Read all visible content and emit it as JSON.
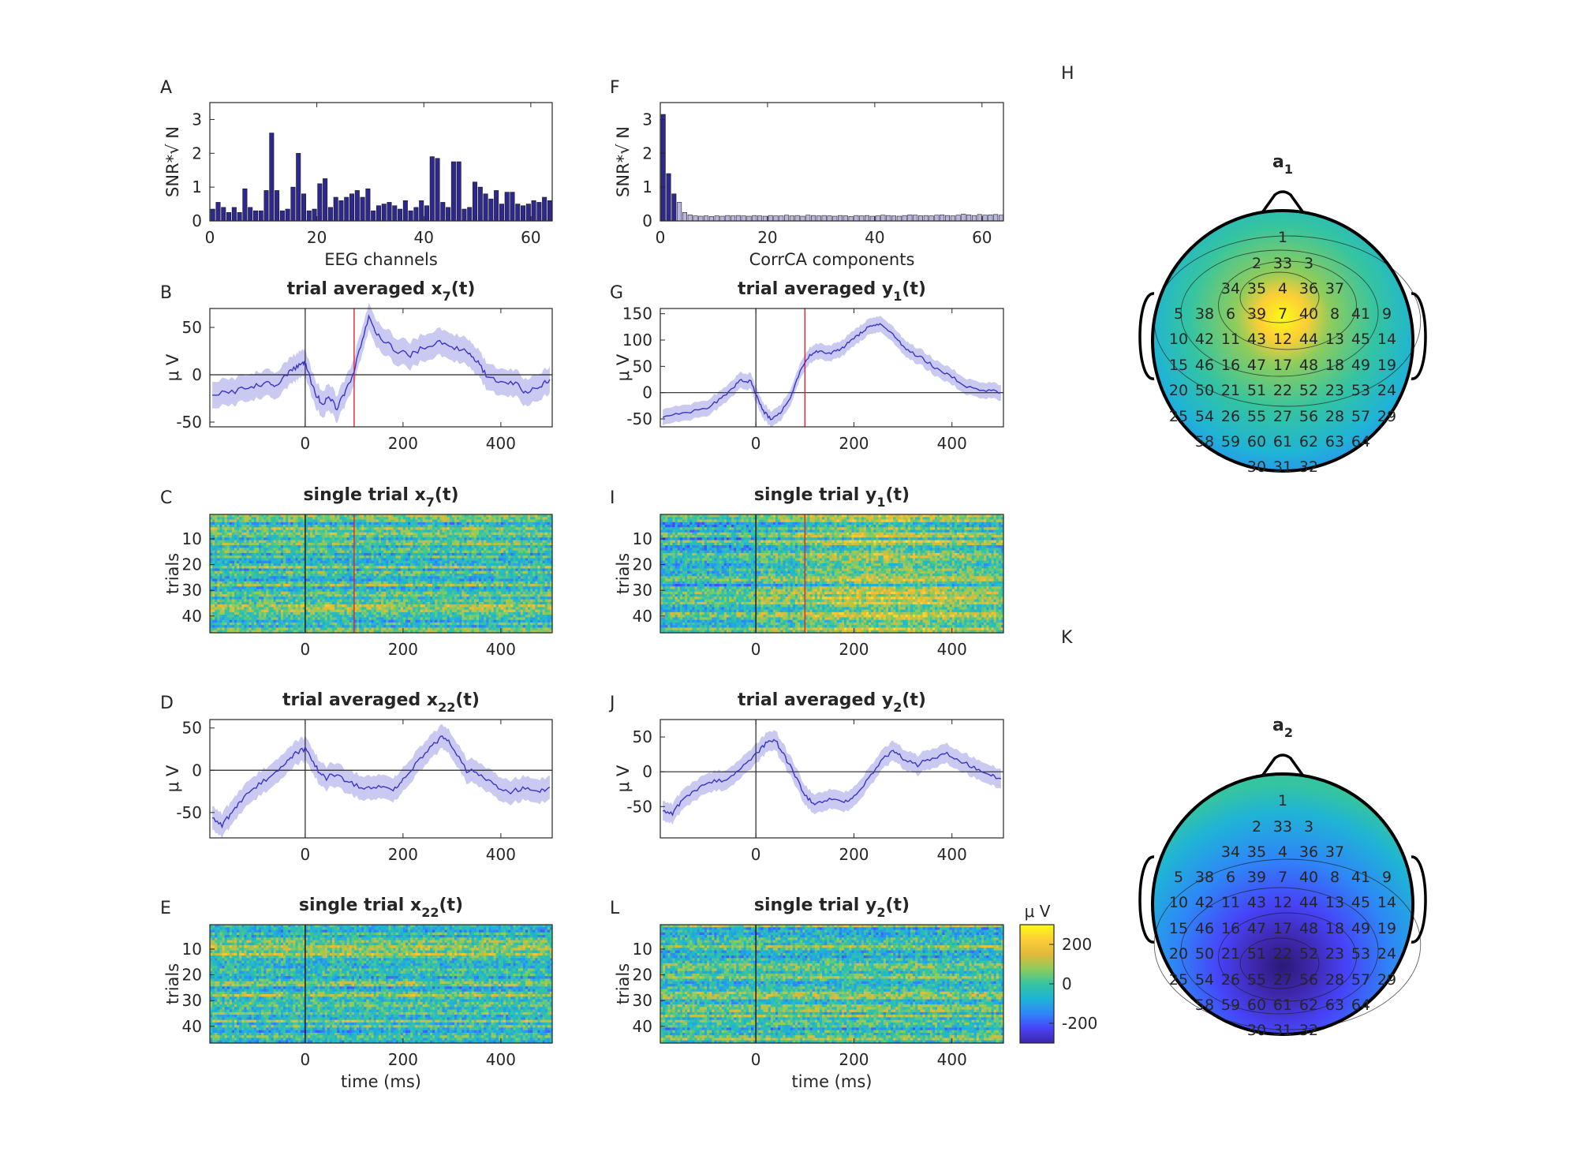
{
  "figure": {
    "panel_letters": [
      "A",
      "B",
      "C",
      "D",
      "E",
      "F",
      "G",
      "I",
      "J",
      "L",
      "H",
      "K"
    ],
    "colorbar": {
      "unit": "μ V",
      "ticks": [
        200,
        0,
        -200
      ],
      "range": [
        -300,
        300
      ]
    },
    "colormap": [
      "#3e26a8",
      "#4743f8",
      "#2e87f7",
      "#1fb4d5",
      "#35c4a0",
      "#8ecc5c",
      "#e0b93a",
      "#fdce36",
      "#f9fb15"
    ],
    "accent_colors": {
      "bars": "#2d2790",
      "bars_light": "#b8b6e0",
      "line": "#3a35c5",
      "band": "#c0bfee",
      "marker": "#e8202a"
    }
  },
  "chart_data": [
    {
      "id": "A",
      "type": "bar",
      "panel_label": "A",
      "title": "",
      "xlabel": "EEG channels",
      "ylabel": "SNR*√ N",
      "xlim": [
        0,
        64
      ],
      "ylim": [
        0,
        3.5
      ],
      "xticks": [
        0,
        20,
        40,
        60
      ],
      "yticks": [
        0,
        1,
        2,
        3
      ],
      "x": [
        1,
        2,
        3,
        4,
        5,
        6,
        7,
        8,
        9,
        10,
        11,
        12,
        13,
        14,
        15,
        16,
        17,
        18,
        19,
        20,
        21,
        22,
        23,
        24,
        25,
        26,
        27,
        28,
        29,
        30,
        31,
        32,
        33,
        34,
        35,
        36,
        37,
        38,
        39,
        40,
        41,
        42,
        43,
        44,
        45,
        46,
        47,
        48,
        49,
        50,
        51,
        52,
        53,
        54,
        55,
        56,
        57,
        58,
        59,
        60,
        61,
        62,
        63,
        64
      ],
      "values": [
        0.35,
        0.55,
        0.4,
        0.25,
        0.4,
        0.25,
        0.95,
        0.4,
        0.3,
        0.3,
        0.9,
        2.6,
        0.9,
        0.3,
        0.35,
        1.0,
        2.0,
        0.8,
        0.3,
        0.35,
        1.1,
        1.25,
        0.4,
        0.7,
        0.6,
        0.7,
        0.8,
        0.9,
        0.7,
        0.95,
        0.3,
        0.45,
        0.5,
        0.55,
        0.45,
        0.35,
        0.6,
        0.3,
        0.4,
        0.6,
        0.45,
        1.9,
        1.85,
        0.55,
        0.4,
        1.75,
        1.75,
        0.35,
        0.4,
        1.15,
        1.0,
        0.8,
        0.65,
        0.9,
        0.5,
        0.85,
        0.85,
        0.5,
        0.45,
        0.5,
        0.6,
        0.55,
        0.7,
        0.6
      ]
    },
    {
      "id": "F",
      "type": "bar",
      "panel_label": "F",
      "title": "",
      "xlabel": "CorrCA components",
      "ylabel": "SNR*√ N",
      "xlim": [
        0,
        64
      ],
      "ylim": [
        0,
        3.5
      ],
      "xticks": [
        0,
        20,
        40,
        60
      ],
      "yticks": [
        0,
        1,
        2,
        3
      ],
      "x": [
        1,
        2,
        3,
        4,
        5,
        6,
        7,
        8,
        9,
        10,
        11,
        12,
        13,
        14,
        15,
        16,
        17,
        18,
        19,
        20,
        21,
        22,
        23,
        24,
        25,
        26,
        27,
        28,
        29,
        30,
        31,
        32,
        33,
        34,
        35,
        36,
        37,
        38,
        39,
        40,
        41,
        42,
        43,
        44,
        45,
        46,
        47,
        48,
        49,
        50,
        51,
        52,
        53,
        54,
        55,
        56,
        57,
        58,
        59,
        60,
        61,
        62,
        63,
        64
      ],
      "values": [
        3.15,
        1.4,
        0.8,
        0.55,
        0.25,
        0.18,
        0.15,
        0.14,
        0.15,
        0.13,
        0.15,
        0.14,
        0.16,
        0.15,
        0.16,
        0.15,
        0.14,
        0.16,
        0.15,
        0.14,
        0.16,
        0.15,
        0.15,
        0.17,
        0.15,
        0.16,
        0.14,
        0.17,
        0.16,
        0.15,
        0.16,
        0.15,
        0.14,
        0.16,
        0.15,
        0.13,
        0.16,
        0.15,
        0.16,
        0.14,
        0.15,
        0.17,
        0.16,
        0.15,
        0.14,
        0.16,
        0.18,
        0.17,
        0.15,
        0.16,
        0.15,
        0.17,
        0.18,
        0.16,
        0.15,
        0.17,
        0.2,
        0.18,
        0.16,
        0.19,
        0.17,
        0.18,
        0.19,
        0.17
      ],
      "highlight_count": 3
    },
    {
      "id": "B",
      "type": "line",
      "panel_label": "B",
      "title": "trial averaged x",
      "title_sub": "7",
      "title_end": "(t)",
      "xlabel": "",
      "ylabel": "μ V",
      "xlim": [
        -195,
        505
      ],
      "ylim": [
        -55,
        70
      ],
      "xticks": [
        0,
        200,
        400
      ],
      "yticks": [
        -50,
        0,
        50
      ],
      "marker_ms": 100,
      "series": [
        {
          "band": 14,
          "x": [
            -190,
            -150,
            -110,
            -80,
            -60,
            -40,
            -20,
            -5,
            5,
            20,
            35,
            50,
            65,
            80,
            95,
            110,
            130,
            150,
            180,
            210,
            240,
            270,
            300,
            330,
            350,
            370,
            400,
            430,
            450,
            480,
            500
          ],
          "y": [
            -22,
            -18,
            -12,
            -8,
            -12,
            -2,
            8,
            15,
            5,
            -20,
            -30,
            -25,
            -35,
            -20,
            -5,
            25,
            60,
            40,
            28,
            20,
            28,
            35,
            28,
            25,
            15,
            0,
            -8,
            -10,
            -18,
            -12,
            -5
          ]
        }
      ]
    },
    {
      "id": "G",
      "type": "line",
      "panel_label": "G",
      "title": "trial averaged y",
      "title_sub": "1",
      "title_end": "(t)",
      "xlabel": "",
      "ylabel": "μ V",
      "xlim": [
        -195,
        505
      ],
      "ylim": [
        -65,
        160
      ],
      "xticks": [
        0,
        200,
        400
      ],
      "yticks": [
        -50,
        0,
        50,
        100,
        150
      ],
      "marker_ms": 100,
      "series": [
        {
          "band": 15,
          "x": [
            -190,
            -150,
            -100,
            -70,
            -50,
            -30,
            -10,
            5,
            15,
            30,
            50,
            70,
            90,
            110,
            130,
            150,
            170,
            190,
            210,
            230,
            250,
            270,
            290,
            310,
            340,
            370,
            400,
            430,
            470,
            500
          ],
          "y": [
            -45,
            -40,
            -30,
            -10,
            5,
            25,
            20,
            -15,
            -35,
            -50,
            -40,
            -10,
            40,
            70,
            80,
            75,
            80,
            95,
            110,
            125,
            130,
            120,
            100,
            80,
            65,
            45,
            30,
            10,
            5,
            0
          ]
        }
      ]
    },
    {
      "id": "D",
      "type": "line",
      "panel_label": "D",
      "title": "trial averaged x",
      "title_sub": "22",
      "title_end": "(t)",
      "xlabel": "",
      "ylabel": "μ V",
      "xlim": [
        -195,
        505
      ],
      "ylim": [
        -80,
        60
      ],
      "xticks": [
        0,
        200,
        400
      ],
      "yticks": [
        -50,
        0,
        50
      ],
      "series": [
        {
          "band": 14,
          "x": [
            -190,
            -170,
            -150,
            -130,
            -100,
            -70,
            -40,
            -20,
            0,
            20,
            40,
            60,
            90,
            120,
            150,
            180,
            200,
            230,
            260,
            280,
            300,
            330,
            360,
            390,
            420,
            450,
            480,
            500
          ],
          "y": [
            -55,
            -65,
            -50,
            -35,
            -20,
            -5,
            8,
            20,
            25,
            5,
            -10,
            -5,
            -15,
            -20,
            -20,
            -25,
            -10,
            10,
            30,
            40,
            30,
            0,
            -5,
            -20,
            -25,
            -20,
            -25,
            -20
          ]
        }
      ]
    },
    {
      "id": "J",
      "type": "line",
      "panel_label": "J",
      "title": "trial averaged y",
      "title_sub": "2",
      "title_end": "(t)",
      "xlabel": "",
      "ylabel": "μ V",
      "xlim": [
        -195,
        505
      ],
      "ylim": [
        -95,
        75
      ],
      "xticks": [
        0,
        200,
        400
      ],
      "yticks": [
        -50,
        0,
        50
      ],
      "series": [
        {
          "band": 14,
          "x": [
            -190,
            -170,
            -150,
            -120,
            -90,
            -60,
            -30,
            0,
            20,
            40,
            60,
            80,
            100,
            120,
            150,
            180,
            200,
            230,
            260,
            280,
            300,
            330,
            360,
            390,
            420,
            450,
            480,
            500
          ],
          "y": [
            -55,
            -60,
            -40,
            -25,
            -15,
            -10,
            5,
            25,
            40,
            45,
            20,
            -5,
            -35,
            -45,
            -40,
            -45,
            -35,
            -10,
            20,
            30,
            20,
            10,
            20,
            25,
            15,
            5,
            -5,
            -10
          ]
        }
      ]
    },
    {
      "id": "C",
      "type": "heatmap",
      "panel_label": "C",
      "title": "single trial x",
      "title_sub": "7",
      "title_end": "(t)",
      "xlabel": "",
      "ylabel": "trials",
      "xlim": [
        -195,
        505
      ],
      "ylim": [
        1,
        46
      ],
      "xticks": [
        0,
        200,
        400
      ],
      "yticks": [
        10,
        20,
        30,
        40
      ],
      "marker_ms": 100,
      "seed": 7
    },
    {
      "id": "I",
      "type": "heatmap",
      "panel_label": "I",
      "title": "single trial y",
      "title_sub": "1",
      "title_end": "(t)",
      "xlabel": "",
      "ylabel": "trials",
      "xlim": [
        -195,
        505
      ],
      "ylim": [
        1,
        46
      ],
      "xticks": [
        0,
        200,
        400
      ],
      "yticks": [
        10,
        20,
        30,
        40
      ],
      "marker_ms": 100,
      "seed": 11
    },
    {
      "id": "E",
      "type": "heatmap",
      "panel_label": "E",
      "title": "single trial x",
      "title_sub": "22",
      "title_end": "(t)",
      "xlabel": "time (ms)",
      "ylabel": "trials",
      "xlim": [
        -195,
        505
      ],
      "ylim": [
        1,
        46
      ],
      "xticks": [
        0,
        200,
        400
      ],
      "yticks": [
        10,
        20,
        30,
        40
      ],
      "seed": 22
    },
    {
      "id": "L",
      "type": "heatmap",
      "panel_label": "L",
      "title": "single trial y",
      "title_sub": "2",
      "title_end": "(t)",
      "xlabel": "time (ms)",
      "ylabel": "trials",
      "xlim": [
        -195,
        505
      ],
      "ylim": [
        1,
        46
      ],
      "xticks": [
        0,
        200,
        400
      ],
      "yticks": [
        10,
        20,
        30,
        40
      ],
      "seed": 33
    },
    {
      "id": "H",
      "type": "heatmap",
      "subtype": "scalp-topography",
      "panel_label": "H",
      "title": "a",
      "title_sub": "1",
      "electrode_rows": [
        [
          "1"
        ],
        [
          "2",
          "33",
          "3"
        ],
        [
          "34",
          "35",
          "4",
          "36",
          "37"
        ],
        [
          "5",
          "38",
          "6",
          "39",
          "7",
          "40",
          "8",
          "41",
          "9"
        ],
        [
          "10",
          "42",
          "11",
          "43",
          "12",
          "44",
          "13",
          "45",
          "14"
        ],
        [
          "15",
          "46",
          "16",
          "47",
          "17",
          "48",
          "18",
          "49",
          "19"
        ],
        [
          "20",
          "50",
          "21",
          "51",
          "22",
          "52",
          "23",
          "53",
          "24"
        ],
        [
          "25",
          "54",
          "26",
          "55",
          "27",
          "56",
          "28",
          "57",
          "29"
        ],
        [
          "58",
          "59",
          "60",
          "61",
          "62",
          "63",
          "64"
        ],
        [
          "30",
          "31",
          "32"
        ]
      ],
      "hotspot": "central-positive"
    },
    {
      "id": "K",
      "type": "heatmap",
      "subtype": "scalp-topography",
      "panel_label": "K",
      "title": "a",
      "title_sub": "2",
      "electrode_rows": [
        [
          "1"
        ],
        [
          "2",
          "33",
          "3"
        ],
        [
          "34",
          "35",
          "4",
          "36",
          "37"
        ],
        [
          "5",
          "38",
          "6",
          "39",
          "7",
          "40",
          "8",
          "41",
          "9"
        ],
        [
          "10",
          "42",
          "11",
          "43",
          "12",
          "44",
          "13",
          "45",
          "14"
        ],
        [
          "15",
          "46",
          "16",
          "47",
          "17",
          "48",
          "18",
          "49",
          "19"
        ],
        [
          "20",
          "50",
          "21",
          "51",
          "22",
          "52",
          "23",
          "53",
          "24"
        ],
        [
          "25",
          "54",
          "26",
          "55",
          "27",
          "56",
          "28",
          "57",
          "29"
        ],
        [
          "58",
          "59",
          "60",
          "61",
          "62",
          "63",
          "64"
        ],
        [
          "30",
          "31",
          "32"
        ]
      ],
      "hotspot": "posterior-negative"
    }
  ]
}
